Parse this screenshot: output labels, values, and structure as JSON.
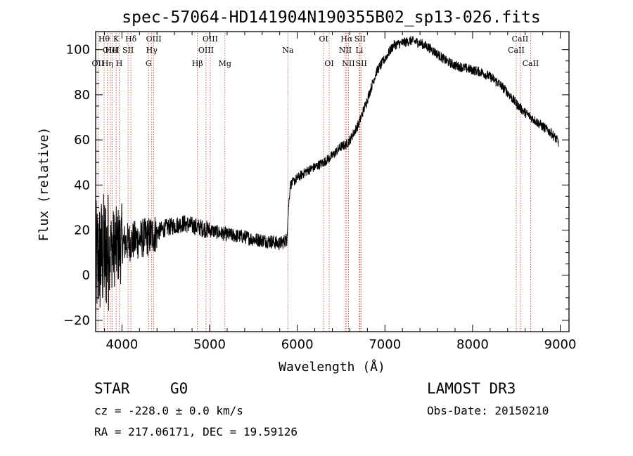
{
  "chart_data": {
    "type": "line",
    "title": "spec-57064-HD141904N190355B02_sp13-026.fits",
    "xlabel": "Wavelength (Å)",
    "ylabel": "Flux (relative)",
    "xlim": [
      3700,
      9100
    ],
    "ylim": [
      -25,
      108
    ],
    "xticks": [
      4000,
      5000,
      6000,
      7000,
      8000,
      9000
    ],
    "yticks": [
      -20,
      0,
      20,
      40,
      60,
      80,
      100
    ],
    "grid": false,
    "series": [
      {
        "name": "spectrum",
        "x": [
          3700,
          3760,
          3800,
          3850,
          3900,
          3950,
          4000,
          4100,
          4200,
          4300,
          4400,
          4500,
          4600,
          4700,
          4800,
          4900,
          5000,
          5100,
          5200,
          5300,
          5400,
          5500,
          5600,
          5700,
          5800,
          5850,
          5880,
          5900,
          5920,
          6000,
          6100,
          6200,
          6300,
          6400,
          6500,
          6560,
          6600,
          6700,
          6800,
          6900,
          7000,
          7100,
          7200,
          7300,
          7400,
          7500,
          7600,
          7700,
          7800,
          7900,
          8000,
          8100,
          8200,
          8300,
          8400,
          8500,
          8600,
          8700,
          8800,
          8900,
          8980
        ],
        "y": [
          5,
          8,
          10,
          11,
          12,
          13,
          14,
          15,
          16,
          17,
          19,
          21,
          22,
          23,
          22,
          21,
          20,
          19,
          18,
          17.5,
          17,
          16,
          15.5,
          15,
          14,
          15,
          16,
          30,
          40,
          43,
          46,
          48,
          50,
          53,
          57,
          58,
          60,
          67,
          78,
          90,
          96,
          102,
          103,
          104,
          103,
          101,
          98,
          95,
          93,
          92,
          91,
          90,
          88,
          85,
          81,
          76,
          72,
          69,
          66,
          63,
          59
        ]
      }
    ],
    "spectral_lines": [
      {
        "label": "OII",
        "x": 3727,
        "row": 2
      },
      {
        "label": "Hθ",
        "x": 3797,
        "row": 0
      },
      {
        "label": "OIII",
        "x": 3869,
        "row": 1
      },
      {
        "label": "K",
        "x": 3934,
        "row": 0
      },
      {
        "label": "HeI",
        "x": 3889,
        "row": 1
      },
      {
        "label": "Hη",
        "x": 3835,
        "row": 2
      },
      {
        "label": "H",
        "x": 3969,
        "row": 2
      },
      {
        "label": "Hδ",
        "x": 4102,
        "row": 0
      },
      {
        "label": "SII",
        "x": 4070,
        "row": 1
      },
      {
        "label": "OIII",
        "x": 4363,
        "row": 0
      },
      {
        "label": "Hγ",
        "x": 4340,
        "row": 1
      },
      {
        "label": "G",
        "x": 4304,
        "row": 2
      },
      {
        "label": "OIII",
        "x": 5007,
        "row": 0
      },
      {
        "label": "OIII",
        "x": 4959,
        "row": 1
      },
      {
        "label": "Hβ",
        "x": 4861,
        "row": 2
      },
      {
        "label": "Mg",
        "x": 5175,
        "row": 2
      },
      {
        "label": "Na",
        "x": 5893,
        "row": 1
      },
      {
        "label": "OI",
        "x": 6300,
        "row": 0
      },
      {
        "label": "OI",
        "x": 6364,
        "row": 2
      },
      {
        "label": "Hα",
        "x": 6563,
        "row": 0
      },
      {
        "label": "SII",
        "x": 6716,
        "row": 0
      },
      {
        "label": "NII",
        "x": 6548,
        "row": 1
      },
      {
        "label": "Li",
        "x": 6708,
        "row": 1
      },
      {
        "label": "NII",
        "x": 6584,
        "row": 2
      },
      {
        "label": "SII",
        "x": 6731,
        "row": 2
      },
      {
        "label": "CaII",
        "x": 8542,
        "row": 0
      },
      {
        "label": "CaII",
        "x": 8498,
        "row": 1
      },
      {
        "label": "CaII",
        "x": 8662,
        "row": 2
      }
    ]
  },
  "info": {
    "class_label": "STAR",
    "subclass_label": "G0",
    "cz_text": "cz = -228.0 ± 0.0 km/s",
    "radec_text": "RA = 217.06171, DEC =  19.59126",
    "survey_label": "LAMOST DR3",
    "obsdate_text": "Obs-Date: 20150210"
  }
}
